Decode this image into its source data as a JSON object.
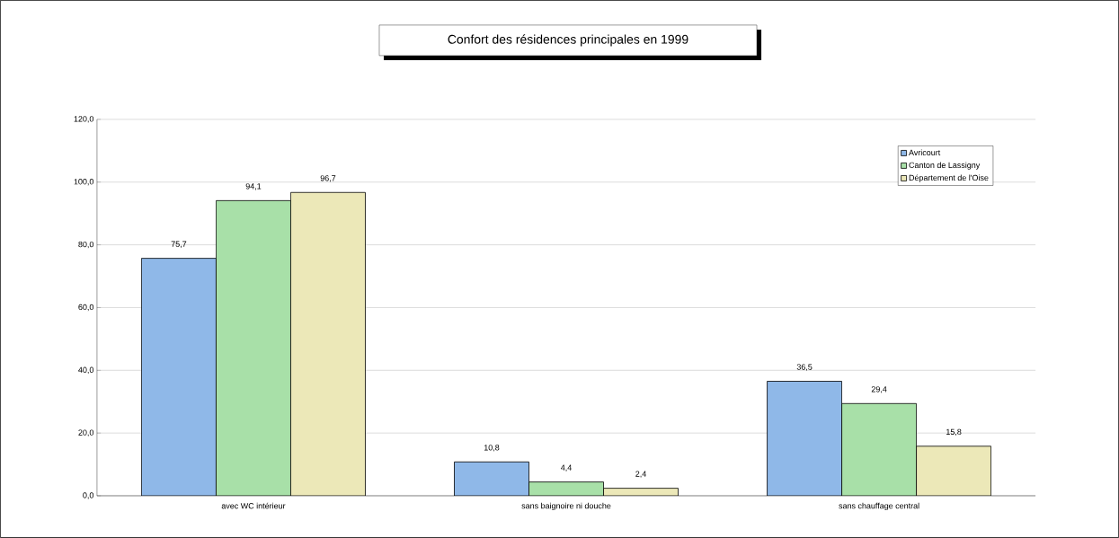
{
  "chart_data": {
    "type": "bar",
    "title": "Confort des résidences principales en 1999",
    "categories": [
      "avec WC intérieur",
      "sans baignoire ni douche",
      "sans chauffage central"
    ],
    "series": [
      {
        "name": "Avricourt",
        "color": "#8fb8e8",
        "values": [
          75.7,
          10.8,
          36.5
        ],
        "value_labels": [
          "75,7",
          "10,8",
          "36,5"
        ]
      },
      {
        "name": "Canton de Lassigny",
        "color": "#a8e0a8",
        "values": [
          94.1,
          4.4,
          29.4
        ],
        "value_labels": [
          "94,1",
          "4,4",
          "29,4"
        ]
      },
      {
        "name": "Département de l'Oise",
        "color": "#ece8b8",
        "values": [
          96.7,
          2.4,
          15.8
        ],
        "value_labels": [
          "96,7",
          "2,4",
          "15,8"
        ]
      }
    ],
    "ylim": [
      0,
      120
    ],
    "yticks": [
      {
        "value": 0,
        "label": "0,0"
      },
      {
        "value": 20,
        "label": "20,0"
      },
      {
        "value": 40,
        "label": "40,0"
      },
      {
        "value": 60,
        "label": "60,0"
      },
      {
        "value": 80,
        "label": "80,0"
      },
      {
        "value": 100,
        "label": "100,0"
      },
      {
        "value": 120,
        "label": "120,0"
      }
    ],
    "grid": "y",
    "legend": "top right"
  }
}
